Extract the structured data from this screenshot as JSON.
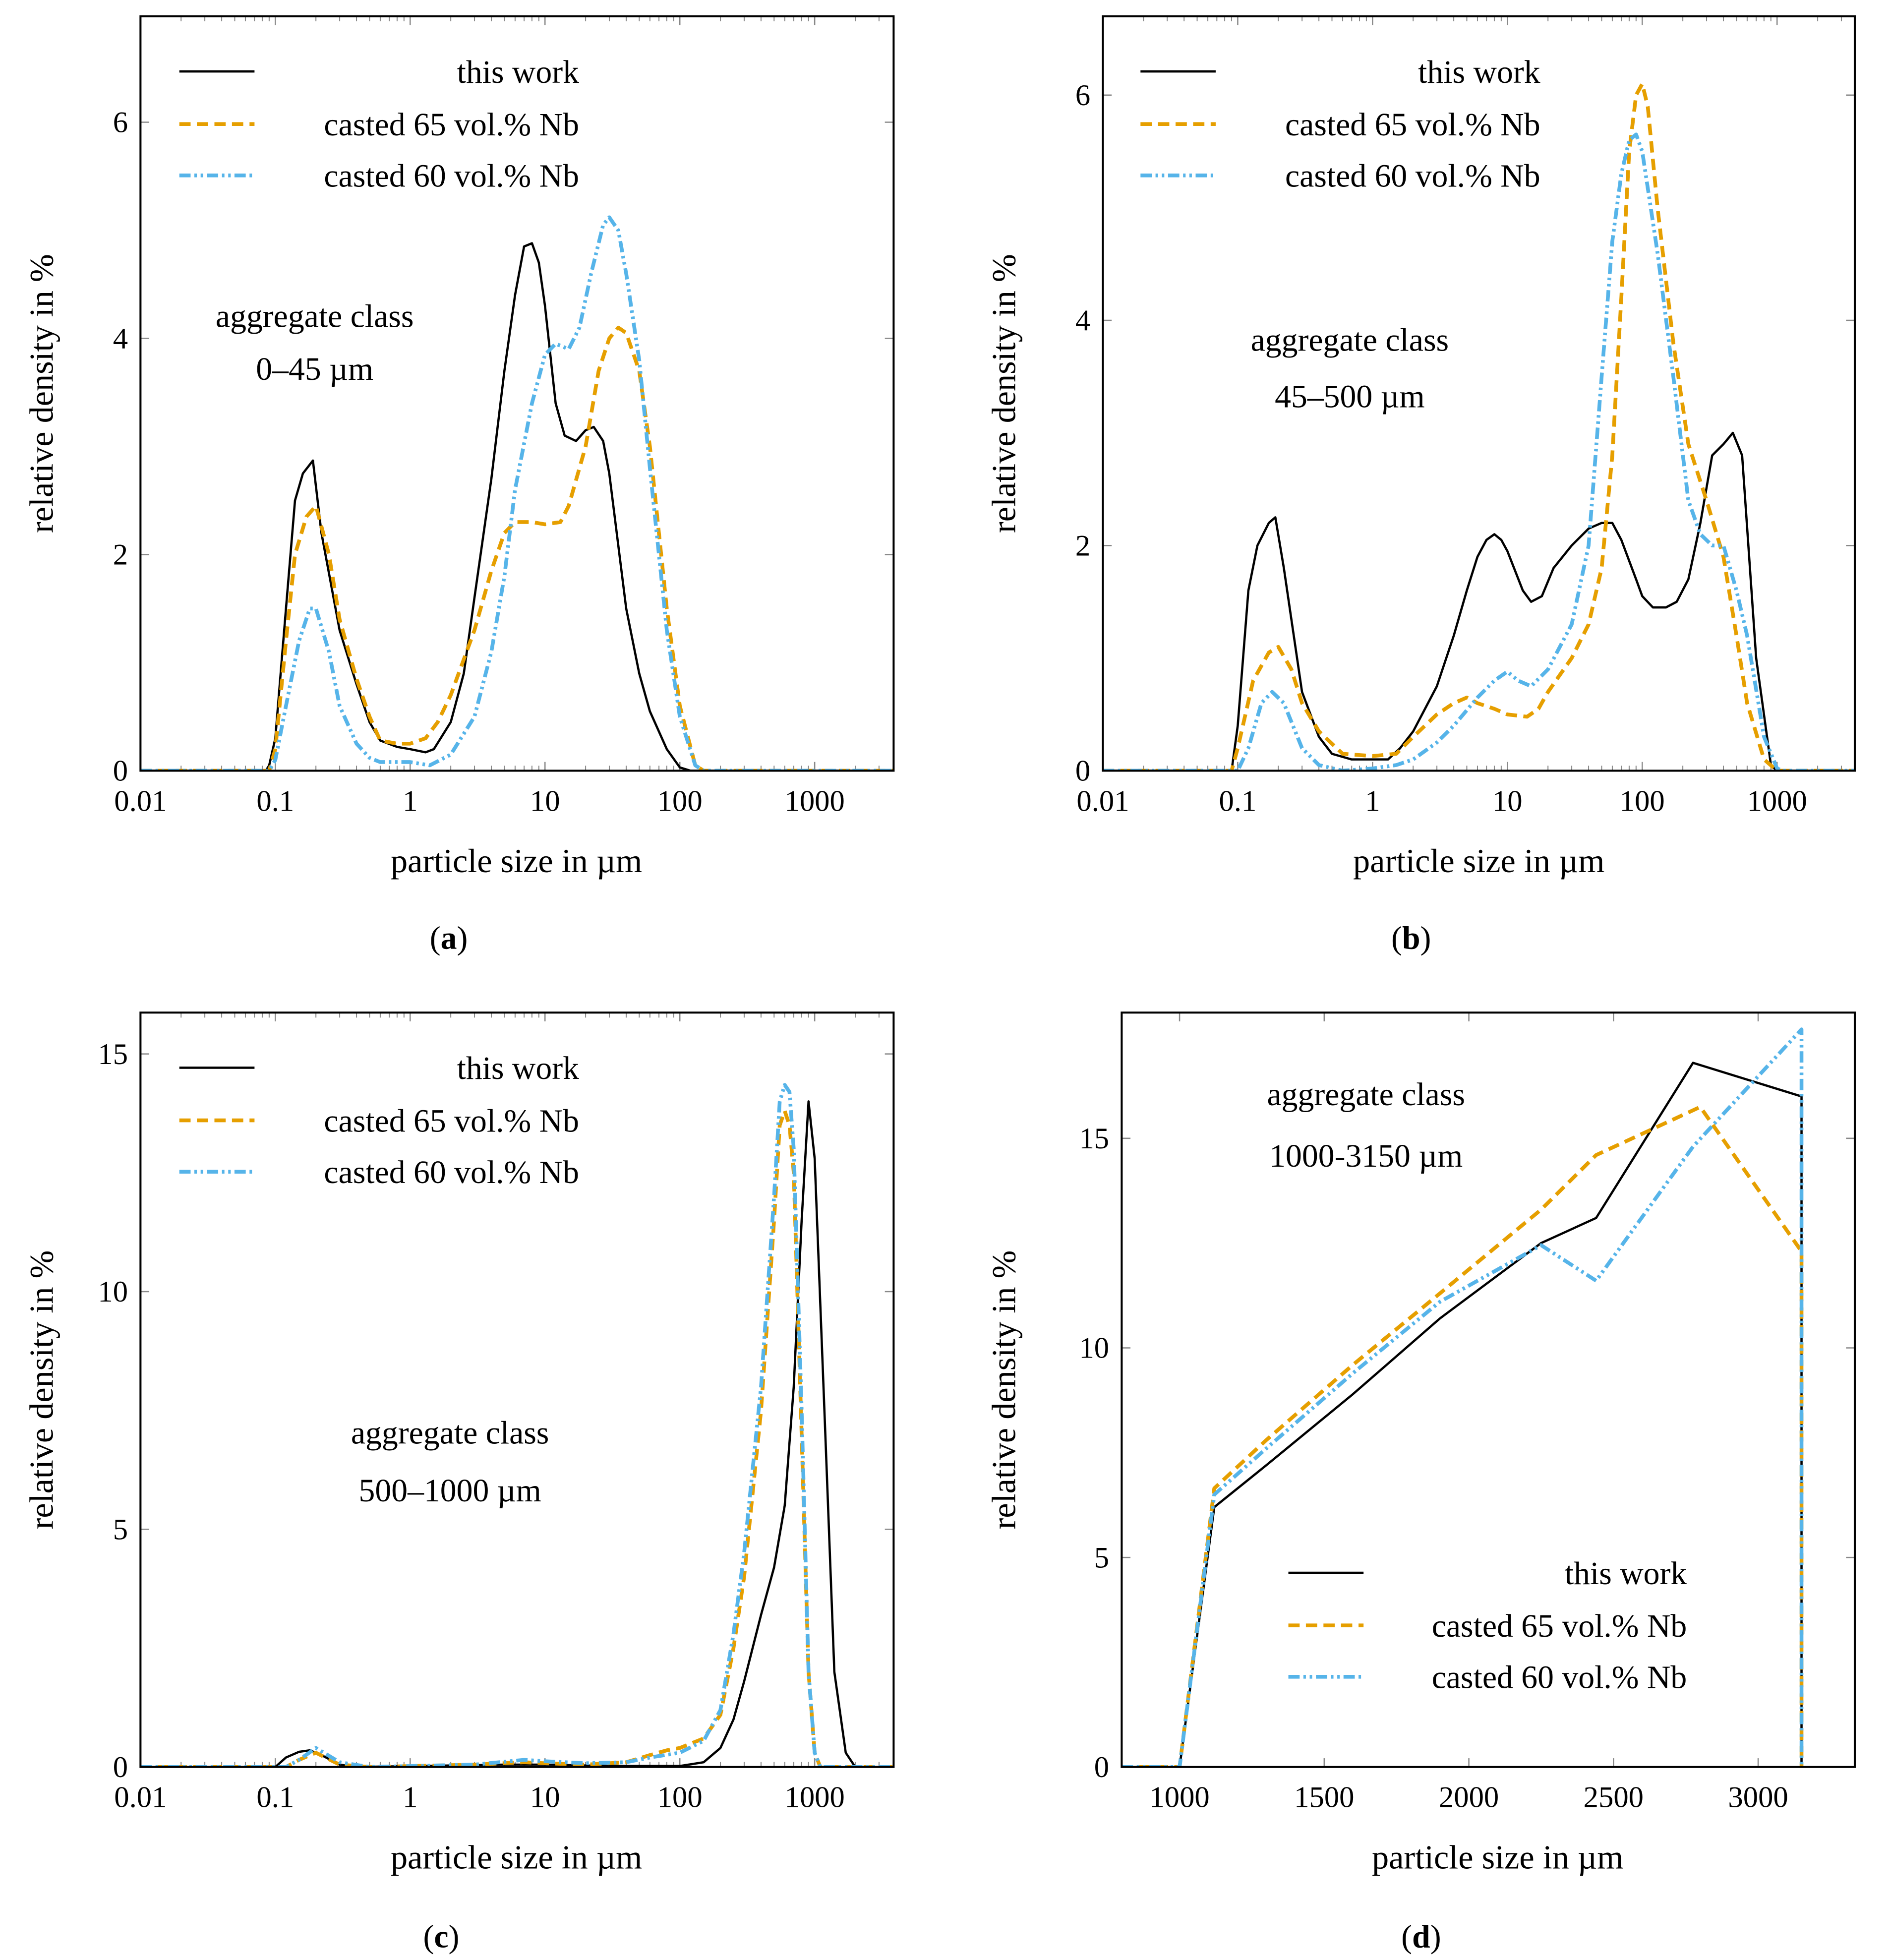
{
  "chart_data": [
    {
      "id": "a",
      "type": "line",
      "xscale": "log",
      "caption_letter": "a",
      "xlabel": "particle size in µm",
      "ylabel": "relative density in %",
      "xlim": [
        0.01,
        3850
      ],
      "ylim": [
        0,
        6.98
      ],
      "x_ticks": [
        0.01,
        0.1,
        1,
        10,
        100,
        1000
      ],
      "x_tick_labels": [
        "0.01",
        "0.1",
        "1",
        "10",
        "100",
        "1000"
      ],
      "y_ticks": [
        0,
        2,
        4,
        6
      ],
      "y_tick_labels": [
        "0",
        "2",
        "4",
        "6"
      ],
      "annotation": [
        "aggregate class",
        "0–45 µm"
      ],
      "legend_position": "top-left",
      "series": [
        {
          "name": "this work",
          "color": "#000000",
          "style": "solid",
          "x": [
            0.01,
            0.085,
            0.09,
            0.1,
            0.12,
            0.14,
            0.16,
            0.19,
            0.22,
            0.3,
            0.4,
            0.5,
            0.6,
            0.8,
            1,
            1.3,
            1.5,
            2,
            2.5,
            3,
            4,
            5,
            6,
            7,
            8,
            9,
            10,
            12,
            14,
            17,
            20,
            23,
            27,
            30,
            40,
            50,
            60,
            80,
            100,
            120,
            3850
          ],
          "y": [
            0,
            0,
            0.05,
            0.3,
            1.5,
            2.5,
            2.75,
            2.87,
            2.2,
            1.3,
            0.8,
            0.45,
            0.28,
            0.22,
            0.2,
            0.17,
            0.2,
            0.45,
            0.9,
            1.6,
            2.7,
            3.7,
            4.4,
            4.85,
            4.88,
            4.7,
            4.3,
            3.4,
            3.1,
            3.05,
            3.15,
            3.18,
            3.05,
            2.75,
            1.5,
            0.9,
            0.55,
            0.2,
            0.03,
            0,
            0
          ]
        },
        {
          "name": "casted 65 vol.% Nb",
          "color": "#E69F00",
          "style": "dashed",
          "x": [
            0.01,
            0.09,
            0.1,
            0.12,
            0.14,
            0.17,
            0.2,
            0.25,
            0.3,
            0.4,
            0.5,
            0.6,
            0.8,
            1,
            1.3,
            1.6,
            2,
            3,
            4,
            5,
            6,
            8,
            10,
            13,
            15,
            20,
            25,
            30,
            35,
            40,
            50,
            60,
            80,
            100,
            130,
            150,
            3850
          ],
          "y": [
            0,
            0,
            0.2,
            1.2,
            2.0,
            2.35,
            2.45,
            2.0,
            1.4,
            0.85,
            0.5,
            0.28,
            0.25,
            0.25,
            0.3,
            0.45,
            0.7,
            1.3,
            1.85,
            2.2,
            2.3,
            2.3,
            2.28,
            2.3,
            2.45,
            3.0,
            3.7,
            4.0,
            4.1,
            4.05,
            3.7,
            3.0,
            1.5,
            0.6,
            0.05,
            0,
            0
          ]
        },
        {
          "name": "casted 60 vol.% Nb",
          "color": "#56B4E9",
          "style": "dashdotdot",
          "x": [
            0.01,
            0.09,
            0.1,
            0.12,
            0.15,
            0.18,
            0.2,
            0.25,
            0.3,
            0.4,
            0.5,
            0.6,
            1,
            1.4,
            2,
            3,
            4,
            5,
            6,
            8,
            10,
            12,
            15,
            18,
            22,
            27,
            30,
            35,
            40,
            50,
            60,
            80,
            100,
            130,
            150,
            3850
          ],
          "y": [
            0,
            0,
            0.1,
            0.6,
            1.2,
            1.5,
            1.5,
            1.1,
            0.6,
            0.25,
            0.12,
            0.08,
            0.08,
            0.05,
            0.15,
            0.5,
            1.1,
            1.8,
            2.6,
            3.4,
            3.85,
            3.95,
            3.9,
            4.1,
            4.6,
            5.05,
            5.12,
            5.0,
            4.6,
            3.8,
            2.8,
            1.3,
            0.5,
            0.05,
            0,
            0
          ]
        }
      ]
    },
    {
      "id": "b",
      "type": "line",
      "xscale": "log",
      "caption_letter": "b",
      "xlabel": "particle size in µm",
      "ylabel": "relative density in %",
      "xlim": [
        0.01,
        3770
      ],
      "ylim": [
        0,
        6.7
      ],
      "x_ticks": [
        0.01,
        0.1,
        1,
        10,
        100,
        1000
      ],
      "x_tick_labels": [
        "0.01",
        "0.1",
        "1",
        "10",
        "100",
        "1000"
      ],
      "y_ticks": [
        0,
        2,
        4,
        6
      ],
      "y_tick_labels": [
        "0",
        "2",
        "4",
        "6"
      ],
      "annotation": [
        "aggregate class",
        "45–500 µm"
      ],
      "legend_position": "top-left",
      "series": [
        {
          "name": "this work",
          "color": "#000000",
          "style": "solid",
          "x": [
            0.01,
            0.09,
            0.1,
            0.12,
            0.14,
            0.17,
            0.19,
            0.22,
            0.3,
            0.4,
            0.5,
            0.7,
            1,
            1.3,
            1.6,
            2,
            3,
            4,
            5,
            6,
            7,
            8,
            9,
            10,
            13,
            15,
            18,
            22,
            30,
            40,
            50,
            60,
            70,
            90,
            100,
            120,
            150,
            180,
            220,
            270,
            330,
            400,
            470,
            550,
            700,
            900,
            1000,
            3770
          ],
          "y": [
            0,
            0,
            0.4,
            1.6,
            2.0,
            2.2,
            2.25,
            1.8,
            0.7,
            0.3,
            0.15,
            0.1,
            0.1,
            0.1,
            0.2,
            0.35,
            0.75,
            1.2,
            1.6,
            1.9,
            2.05,
            2.1,
            2.05,
            1.95,
            1.6,
            1.5,
            1.55,
            1.8,
            2.0,
            2.15,
            2.2,
            2.2,
            2.05,
            1.7,
            1.55,
            1.45,
            1.45,
            1.5,
            1.7,
            2.2,
            2.8,
            2.9,
            3.0,
            2.8,
            1.0,
            0.05,
            0,
            0
          ]
        },
        {
          "name": "casted 65 vol.% Nb",
          "color": "#E69F00",
          "style": "dashed",
          "x": [
            0.01,
            0.09,
            0.1,
            0.13,
            0.17,
            0.2,
            0.25,
            0.3,
            0.4,
            0.6,
            1,
            1.5,
            2,
            3,
            4,
            5,
            6,
            8,
            10,
            14,
            17,
            20,
            30,
            40,
            50,
            60,
            70,
            80,
            90,
            100,
            110,
            130,
            170,
            220,
            300,
            400,
            500,
            600,
            800,
            1000,
            3770
          ],
          "y": [
            0,
            0,
            0.2,
            0.8,
            1.05,
            1.1,
            0.9,
            0.6,
            0.35,
            0.15,
            0.13,
            0.15,
            0.3,
            0.5,
            0.6,
            0.65,
            0.6,
            0.55,
            0.5,
            0.48,
            0.55,
            0.7,
            1.0,
            1.3,
            1.8,
            2.8,
            4.2,
            5.5,
            6.0,
            6.1,
            5.9,
            5.0,
            3.8,
            2.9,
            2.4,
            1.9,
            1.2,
            0.6,
            0.1,
            0,
            0
          ]
        },
        {
          "name": "casted 60 vol.% Nb",
          "color": "#56B4E9",
          "style": "dashdotdot",
          "x": [
            0.01,
            0.1,
            0.12,
            0.15,
            0.18,
            0.22,
            0.3,
            0.4,
            0.6,
            1,
            1.5,
            2,
            3,
            4,
            6,
            8,
            10,
            12,
            15,
            20,
            30,
            40,
            50,
            60,
            70,
            80,
            90,
            100,
            130,
            170,
            220,
            270,
            330,
            400,
            500,
            600,
            800,
            1000,
            1100,
            3770
          ],
          "y": [
            0,
            0,
            0.2,
            0.6,
            0.7,
            0.6,
            0.2,
            0.05,
            0,
            0.02,
            0.05,
            0.1,
            0.25,
            0.4,
            0.65,
            0.8,
            0.88,
            0.8,
            0.75,
            0.9,
            1.3,
            2.0,
            3.5,
            4.7,
            5.3,
            5.6,
            5.65,
            5.5,
            4.6,
            3.5,
            2.4,
            2.1,
            2.0,
            2.0,
            1.6,
            1.2,
            0.3,
            0.02,
            0,
            0
          ]
        }
      ]
    },
    {
      "id": "c",
      "type": "line",
      "xscale": "log",
      "caption_letter": "c",
      "xlabel": "particle size in µm",
      "ylabel": "relative density in %",
      "xlim": [
        0.01,
        3850
      ],
      "ylim": [
        0,
        15.87
      ],
      "x_ticks": [
        0.01,
        0.1,
        1,
        10,
        100,
        1000
      ],
      "x_tick_labels": [
        "0.01",
        "0.1",
        "1",
        "10",
        "100",
        "1000"
      ],
      "y_ticks": [
        0,
        5,
        10,
        15
      ],
      "y_tick_labels": [
        "0",
        "5",
        "10",
        "15"
      ],
      "annotation": [
        "aggregate class",
        "500–1000 µm"
      ],
      "legend_position": "top-left",
      "series": [
        {
          "name": "this work",
          "color": "#000000",
          "style": "solid",
          "x": [
            0.01,
            0.1,
            0.12,
            0.15,
            0.18,
            0.22,
            0.3,
            0.4,
            5,
            10,
            30,
            100,
            150,
            200,
            250,
            300,
            400,
            500,
            600,
            700,
            800,
            900,
            1000,
            1200,
            1400,
            1700,
            2000,
            3850
          ],
          "y": [
            0,
            0,
            0.2,
            0.32,
            0.35,
            0.25,
            0.05,
            0,
            0.05,
            0.05,
            0.02,
            0.02,
            0.1,
            0.4,
            1.0,
            1.8,
            3.2,
            4.2,
            5.5,
            8,
            11.5,
            14.0,
            12.8,
            7,
            2.0,
            0.3,
            0,
            0
          ]
        },
        {
          "name": "casted 65 vol.% Nb",
          "color": "#E69F00",
          "style": "dashed",
          "x": [
            0.01,
            0.12,
            0.15,
            0.2,
            0.3,
            0.5,
            3,
            7,
            10,
            20,
            40,
            60,
            80,
            100,
            150,
            200,
            250,
            300,
            400,
            500,
            550,
            600,
            650,
            700,
            800,
            900,
            1000,
            1100,
            3850
          ],
          "y": [
            0,
            0,
            0.15,
            0.3,
            0.05,
            0,
            0.05,
            0.1,
            0.08,
            0.05,
            0.1,
            0.25,
            0.35,
            0.4,
            0.6,
            1.1,
            2.5,
            4,
            7.5,
            11.5,
            13.5,
            13.8,
            13.5,
            12.5,
            7,
            2,
            0.3,
            0,
            0
          ]
        },
        {
          "name": "casted 60 vol.% Nb",
          "color": "#56B4E9",
          "style": "dashdotdot",
          "x": [
            0.01,
            0.12,
            0.15,
            0.2,
            0.3,
            0.5,
            3,
            7,
            10,
            20,
            40,
            60,
            100,
            150,
            200,
            250,
            300,
            400,
            500,
            550,
            600,
            650,
            700,
            800,
            900,
            1000,
            1100,
            3850
          ],
          "y": [
            0,
            0,
            0.15,
            0.4,
            0.1,
            0,
            0.05,
            0.15,
            0.12,
            0.08,
            0.1,
            0.2,
            0.3,
            0.55,
            1.2,
            2.8,
            4.5,
            8,
            12,
            14.0,
            14.35,
            14.2,
            13,
            7.5,
            2,
            0.3,
            0,
            0
          ]
        }
      ]
    },
    {
      "id": "d",
      "type": "line",
      "xscale": "linear",
      "caption_letter": "d",
      "xlabel": "particle size in µm",
      "ylabel": "relative density in %",
      "xlim": [
        800,
        3334
      ],
      "ylim": [
        0,
        18
      ],
      "x_ticks": [
        1000,
        1500,
        2000,
        2500,
        3000
      ],
      "x_tick_labels": [
        "1000",
        "1500",
        "2000",
        "2500",
        "3000"
      ],
      "y_ticks": [
        0,
        5,
        10,
        15
      ],
      "y_tick_labels": [
        "0",
        "5",
        "10",
        "15"
      ],
      "annotation": [
        "aggregate class",
        "1000-3150 µm"
      ],
      "legend_position": "bottom-center",
      "series": [
        {
          "name": "this work",
          "color": "#000000",
          "style": "solid",
          "x": [
            800,
            1000,
            1120,
            1300,
            1600,
            1900,
            2250,
            2440,
            2775,
            3150,
            3150
          ],
          "y": [
            0,
            0,
            6.2,
            7.2,
            8.9,
            10.7,
            12.5,
            13.1,
            16.8,
            16.0,
            0
          ]
        },
        {
          "name": "casted 65 vol.% Nb",
          "color": "#E69F00",
          "style": "dashed",
          "x": [
            800,
            1000,
            1120,
            1300,
            1600,
            1900,
            2250,
            2440,
            2800,
            3150,
            3150
          ],
          "y": [
            0,
            0,
            6.65,
            7.8,
            9.6,
            11.3,
            13.3,
            14.6,
            15.75,
            12.3,
            0
          ]
        },
        {
          "name": "casted 60 vol.% Nb",
          "color": "#56B4E9",
          "style": "dashdotdot",
          "x": [
            800,
            1000,
            1120,
            1300,
            1600,
            1900,
            2250,
            2440,
            2775,
            3150,
            3150
          ],
          "y": [
            0,
            0,
            6.5,
            7.6,
            9.4,
            11.1,
            12.45,
            11.6,
            14.8,
            17.6,
            0
          ]
        }
      ]
    }
  ]
}
